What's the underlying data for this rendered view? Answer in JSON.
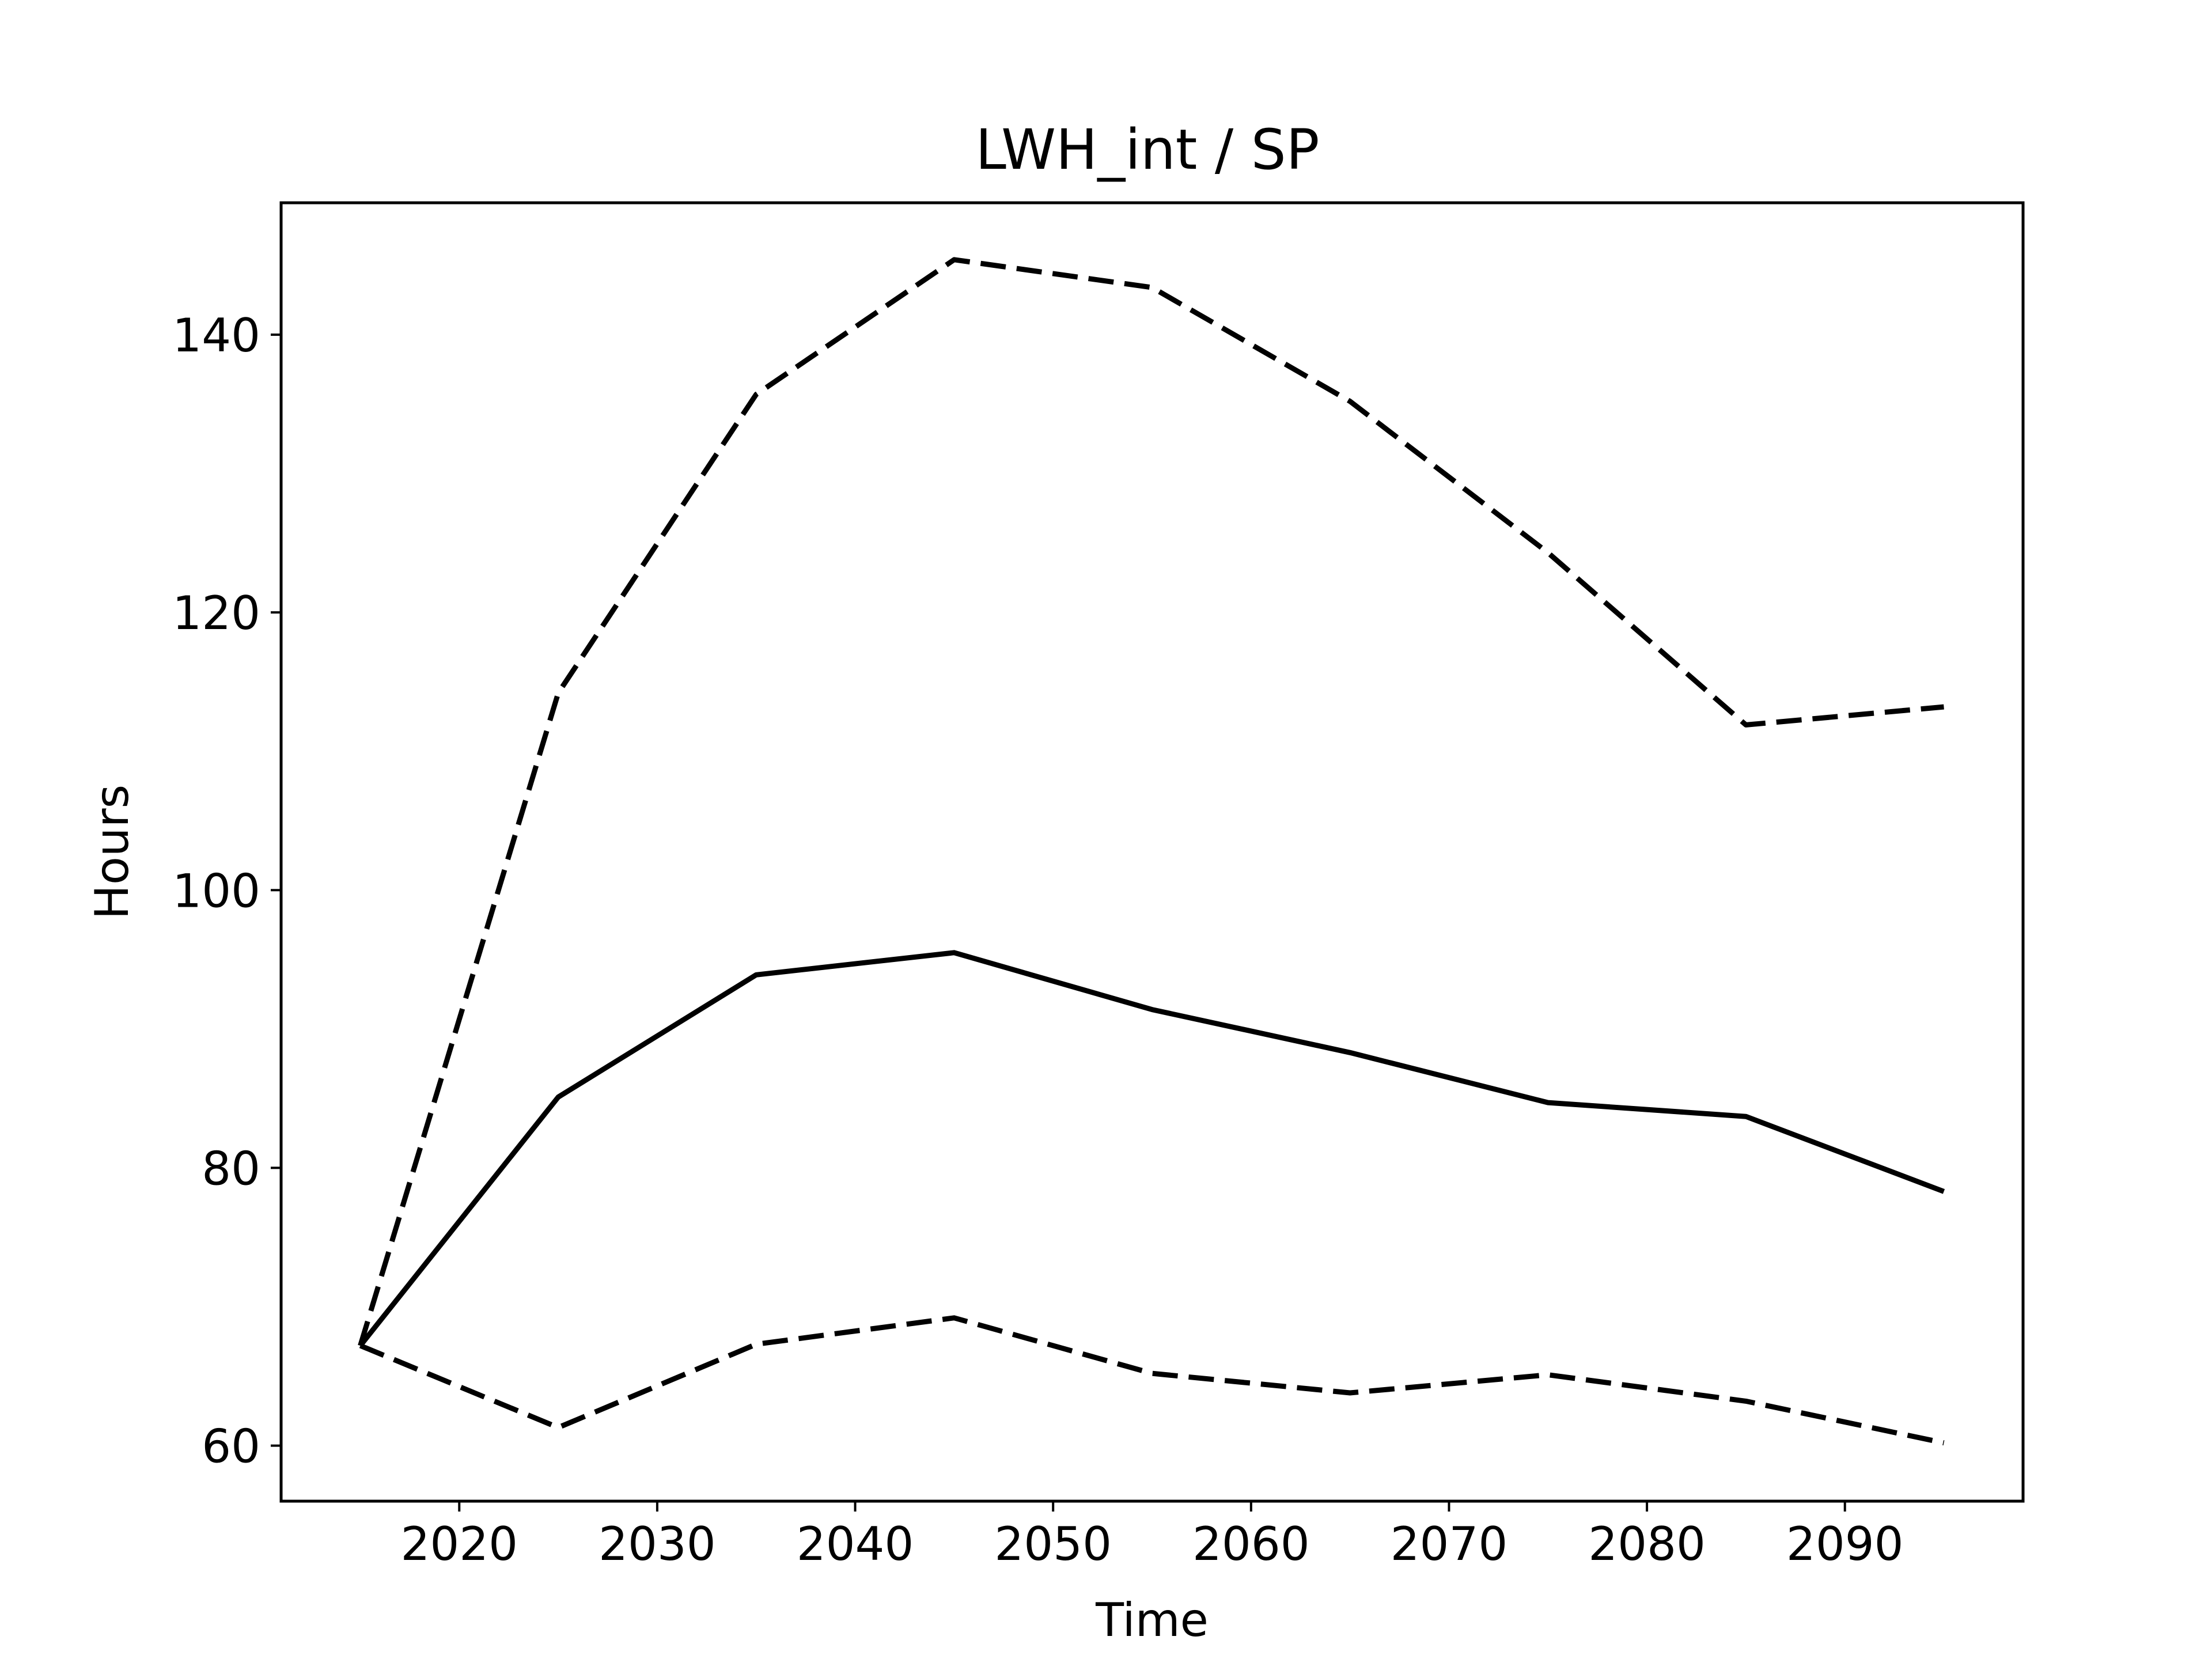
{
  "chart_data": {
    "type": "line",
    "title": "LWH_int / SP",
    "xlabel": "Time",
    "ylabel": "Hours",
    "xlim": [
      2011,
      2099
    ],
    "ylim": [
      56,
      149.5
    ],
    "xticks": [
      2020,
      2030,
      2040,
      2050,
      2060,
      2070,
      2080,
      2090
    ],
    "yticks": [
      60,
      80,
      100,
      120,
      140
    ],
    "grid": false,
    "legend": "none",
    "x": [
      2015,
      2025,
      2035,
      2045,
      2055,
      2065,
      2075,
      2085,
      2095
    ],
    "series": [
      {
        "style": "solid",
        "color": "#000000",
        "values": [
          67.2,
          85.1,
          93.9,
          95.5,
          91.4,
          88.3,
          84.7,
          83.7,
          78.3
        ]
      },
      {
        "style": "dashed",
        "color": "#000000",
        "values": [
          67.2,
          114.2,
          135.7,
          145.4,
          143.4,
          135.2,
          124.3,
          111.9,
          113.2
        ]
      },
      {
        "style": "dashed",
        "color": "#000000",
        "values": [
          67.2,
          61.3,
          67.3,
          69.2,
          65.2,
          63.8,
          65.1,
          63.2,
          60.2
        ]
      }
    ]
  }
}
